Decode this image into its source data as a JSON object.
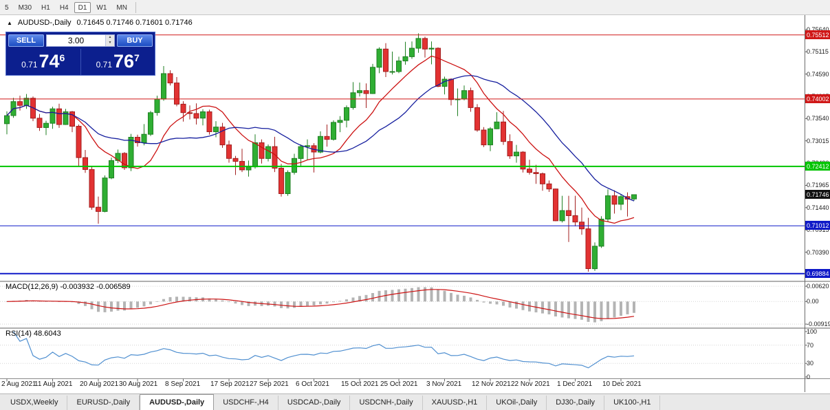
{
  "colors": {
    "bull": "#2fae33",
    "bull_stroke": "#1f7f22",
    "bear": "#e23232",
    "bear_stroke": "#a31f1f",
    "ma_fast": "#cc1111",
    "ma_slow": "#151e9e",
    "macd_hist": "#b4b4b4",
    "macd_signal": "#cc1111",
    "rsi_line": "#4f8fd0",
    "hline_red": "#d01818",
    "hline_green": "#00c400",
    "hline_blue": "#0f19c8",
    "current_tag_bg": "#111111",
    "panel_bg": "#0c1f8e",
    "button_blue": "#2b5fd9"
  },
  "toolbar": {
    "timeframes": [
      "5",
      "M30",
      "H1",
      "H4",
      "D1",
      "W1",
      "MN"
    ],
    "active": "D1"
  },
  "chart_header": {
    "collapse_icon": "▲",
    "title": "AUDUSD-,Daily",
    "ohlc": "0.71645 0.71746 0.71601 0.71746"
  },
  "trade_panel": {
    "sell_label": "SELL",
    "buy_label": "BUY",
    "volume": "3.00",
    "sell_price": {
      "small": "0.71",
      "big": "74",
      "sup": "6"
    },
    "buy_price": {
      "small": "0.71",
      "big": "76",
      "sup": "7"
    }
  },
  "price_axis": {
    "ticks": [
      "0.75640",
      "0.75115",
      "0.74590",
      "0.74065",
      "0.73540",
      "0.73015",
      "0.72490",
      "0.71965",
      "0.71440",
      "0.70915",
      "0.70390",
      "0.69865"
    ],
    "tags": [
      {
        "label": "0.75512",
        "value": 0.75512,
        "bg": "#d01818"
      },
      {
        "label": "0.74002",
        "value": 0.74002,
        "bg": "#d01818"
      },
      {
        "label": "0.72412",
        "value": 0.72412,
        "bg": "#00c400"
      },
      {
        "label": "0.71746",
        "value": 0.71746,
        "bg": "#111111"
      },
      {
        "label": "0.71012",
        "value": 0.71012,
        "bg": "#0f19c8"
      },
      {
        "label": "0.69884",
        "value": 0.69884,
        "bg": "#0f19c8"
      }
    ]
  },
  "panels": {
    "macd": {
      "label": "MACD(12,26,9) -0.003932 -0.006589",
      "axis": [
        {
          "label": "0.00620",
          "value": 0.0062
        },
        {
          "label": "0.00",
          "value": 0
        },
        {
          "label": "-0.00919",
          "value": -0.00919
        }
      ]
    },
    "rsi": {
      "label": "RSI(14) 48.6043",
      "axis": [
        {
          "label": "100",
          "value": 100
        },
        {
          "label": "70",
          "value": 70
        },
        {
          "label": "30",
          "value": 30
        },
        {
          "label": "0",
          "value": 0
        }
      ]
    }
  },
  "tabs": {
    "items": [
      "USDX,Weekly",
      "EURUSD-,Daily",
      "AUDUSD-,Daily",
      "USDCHF-,H4",
      "USDCAD-,Daily",
      "USDCNH-,Daily",
      "XAUUSD-,H1",
      "UKOil-,Daily",
      "DJ30-,Daily",
      "UK100-,H1"
    ],
    "active_index": 2
  },
  "chart_data": {
    "type": "candlestick",
    "title": "AUDUSD-,Daily",
    "ohlc_current": {
      "open": 0.71645,
      "high": 0.71746,
      "low": 0.71601,
      "close": 0.71746
    },
    "y_range": [
      0.6975,
      0.7585
    ],
    "moving_averages": [
      {
        "period": 10,
        "color_key": "ma_fast"
      },
      {
        "period": 20,
        "color_key": "ma_slow"
      }
    ],
    "hlines": [
      {
        "price": 0.75512,
        "color_key": "hline_red",
        "width": 1
      },
      {
        "price": 0.74002,
        "color_key": "hline_red",
        "width": 1
      },
      {
        "price": 0.72412,
        "color_key": "hline_green",
        "width": 2
      },
      {
        "price": 0.71012,
        "color_key": "hline_blue",
        "width": 1
      },
      {
        "price": 0.69884,
        "color_key": "hline_blue",
        "width": 2
      }
    ],
    "date_labels": [
      {
        "index": 0,
        "label": "2 Aug 2021"
      },
      {
        "index": 7,
        "label": "11 Aug 2021"
      },
      {
        "index": 14,
        "label": "20 Aug 2021"
      },
      {
        "index": 20,
        "label": "30 Aug 2021"
      },
      {
        "index": 27,
        "label": "8 Sep 2021"
      },
      {
        "index": 34,
        "label": "17 Sep 2021"
      },
      {
        "index": 40,
        "label": "27 Sep 2021"
      },
      {
        "index": 47,
        "label": "6 Oct 2021"
      },
      {
        "index": 54,
        "label": "15 Oct 2021"
      },
      {
        "index": 60,
        "label": "25 Oct 2021"
      },
      {
        "index": 67,
        "label": "3 Nov 2021"
      },
      {
        "index": 74,
        "label": "12 Nov 2021"
      },
      {
        "index": 80,
        "label": "22 Nov 2021"
      },
      {
        "index": 87,
        "label": "1 Dec 2021"
      },
      {
        "index": 94,
        "label": "10 Dec 2021"
      }
    ],
    "candles_ohlc": [
      [
        0.7342,
        0.7371,
        0.7317,
        0.7361
      ],
      [
        0.7361,
        0.7403,
        0.7356,
        0.7394
      ],
      [
        0.7394,
        0.7408,
        0.7373,
        0.7385
      ],
      [
        0.7385,
        0.7412,
        0.7377,
        0.7402
      ],
      [
        0.7402,
        0.7406,
        0.7348,
        0.7355
      ],
      [
        0.7355,
        0.7365,
        0.7325,
        0.7333
      ],
      [
        0.7333,
        0.7349,
        0.7315,
        0.7343
      ],
      [
        0.7343,
        0.7382,
        0.733,
        0.7377
      ],
      [
        0.7377,
        0.7389,
        0.7332,
        0.734
      ],
      [
        0.734,
        0.7377,
        0.7339,
        0.737
      ],
      [
        0.737,
        0.7372,
        0.7322,
        0.7336
      ],
      [
        0.7336,
        0.734,
        0.7242,
        0.7262
      ],
      [
        0.7262,
        0.728,
        0.7226,
        0.7234
      ],
      [
        0.7234,
        0.7242,
        0.7139,
        0.7145
      ],
      [
        0.7145,
        0.717,
        0.7106,
        0.7135
      ],
      [
        0.7135,
        0.722,
        0.7133,
        0.7214
      ],
      [
        0.7214,
        0.7262,
        0.7211,
        0.7255
      ],
      [
        0.7255,
        0.7281,
        0.7249,
        0.7272
      ],
      [
        0.7272,
        0.7275,
        0.7233,
        0.7238
      ],
      [
        0.7238,
        0.7318,
        0.723,
        0.731
      ],
      [
        0.731,
        0.7316,
        0.7288,
        0.7297
      ],
      [
        0.7297,
        0.7341,
        0.7291,
        0.7317
      ],
      [
        0.7317,
        0.7372,
        0.7313,
        0.7368
      ],
      [
        0.7368,
        0.7408,
        0.7361,
        0.74
      ],
      [
        0.74,
        0.7478,
        0.7396,
        0.746
      ],
      [
        0.746,
        0.7468,
        0.7432,
        0.7438
      ],
      [
        0.7438,
        0.7452,
        0.7383,
        0.7388
      ],
      [
        0.7388,
        0.7395,
        0.7347,
        0.7368
      ],
      [
        0.7368,
        0.7385,
        0.7352,
        0.7366
      ],
      [
        0.7366,
        0.739,
        0.734,
        0.7355
      ],
      [
        0.7355,
        0.7376,
        0.7338,
        0.737
      ],
      [
        0.737,
        0.7375,
        0.7316,
        0.7323
      ],
      [
        0.7323,
        0.7348,
        0.731,
        0.7334
      ],
      [
        0.7334,
        0.7344,
        0.7285,
        0.7292
      ],
      [
        0.7292,
        0.7302,
        0.725,
        0.726
      ],
      [
        0.726,
        0.7266,
        0.7221,
        0.7253
      ],
      [
        0.7253,
        0.7283,
        0.7228,
        0.7233
      ],
      [
        0.7233,
        0.7255,
        0.7217,
        0.724
      ],
      [
        0.724,
        0.7317,
        0.7236,
        0.7297
      ],
      [
        0.7297,
        0.7305,
        0.7248,
        0.726
      ],
      [
        0.726,
        0.7293,
        0.7253,
        0.7288
      ],
      [
        0.7288,
        0.7311,
        0.7228,
        0.7237
      ],
      [
        0.7237,
        0.7247,
        0.717,
        0.7177
      ],
      [
        0.7177,
        0.7232,
        0.7172,
        0.7227
      ],
      [
        0.7227,
        0.7271,
        0.7222,
        0.726
      ],
      [
        0.726,
        0.7293,
        0.724,
        0.7288
      ],
      [
        0.7288,
        0.7305,
        0.7256,
        0.729
      ],
      [
        0.729,
        0.7296,
        0.7227,
        0.7275
      ],
      [
        0.7275,
        0.7324,
        0.7272,
        0.7312
      ],
      [
        0.7312,
        0.734,
        0.7288,
        0.7305
      ],
      [
        0.7305,
        0.735,
        0.7302,
        0.7345
      ],
      [
        0.7345,
        0.736,
        0.7322,
        0.735
      ],
      [
        0.735,
        0.7385,
        0.7333,
        0.738
      ],
      [
        0.738,
        0.744,
        0.7375,
        0.7415
      ],
      [
        0.7415,
        0.7439,
        0.7406,
        0.742
      ],
      [
        0.742,
        0.7437,
        0.7379,
        0.7413
      ],
      [
        0.7413,
        0.7483,
        0.7412,
        0.7475
      ],
      [
        0.7475,
        0.7522,
        0.7461,
        0.7518
      ],
      [
        0.7518,
        0.7532,
        0.7452,
        0.7465
      ],
      [
        0.7465,
        0.7512,
        0.7458,
        0.7465
      ],
      [
        0.7465,
        0.75,
        0.7461,
        0.749
      ],
      [
        0.749,
        0.7535,
        0.7481,
        0.75
      ],
      [
        0.75,
        0.7536,
        0.7495,
        0.752
      ],
      [
        0.752,
        0.7555,
        0.7509,
        0.7543
      ],
      [
        0.7543,
        0.7547,
        0.7498,
        0.7518
      ],
      [
        0.7518,
        0.7536,
        0.7482,
        0.752
      ],
      [
        0.752,
        0.7522,
        0.7428,
        0.743
      ],
      [
        0.743,
        0.7453,
        0.7411,
        0.7447
      ],
      [
        0.7447,
        0.7449,
        0.7385,
        0.7399
      ],
      [
        0.7399,
        0.7425,
        0.736,
        0.74
      ],
      [
        0.74,
        0.7432,
        0.7397,
        0.742
      ],
      [
        0.742,
        0.7427,
        0.737,
        0.738
      ],
      [
        0.738,
        0.7388,
        0.7323,
        0.7327
      ],
      [
        0.7327,
        0.7334,
        0.7287,
        0.7292
      ],
      [
        0.7292,
        0.7334,
        0.7277,
        0.733
      ],
      [
        0.733,
        0.7369,
        0.7329,
        0.7346
      ],
      [
        0.7346,
        0.7372,
        0.7292,
        0.73
      ],
      [
        0.73,
        0.7317,
        0.7259,
        0.7266
      ],
      [
        0.7266,
        0.7292,
        0.725,
        0.7275
      ],
      [
        0.7275,
        0.7277,
        0.7227,
        0.7235
      ],
      [
        0.7235,
        0.7257,
        0.7222,
        0.7227
      ],
      [
        0.7227,
        0.7245,
        0.72,
        0.7224
      ],
      [
        0.7224,
        0.7227,
        0.7184,
        0.72
      ],
      [
        0.72,
        0.7208,
        0.7181,
        0.7188
      ],
      [
        0.7188,
        0.7189,
        0.7112,
        0.7113
      ],
      [
        0.7113,
        0.7172,
        0.7109,
        0.7137
      ],
      [
        0.7137,
        0.7172,
        0.7063,
        0.7125
      ],
      [
        0.7125,
        0.7172,
        0.71,
        0.711
      ],
      [
        0.711,
        0.7144,
        0.708,
        0.7094
      ],
      [
        0.7094,
        0.712,
        0.6993,
        0.7
      ],
      [
        0.7,
        0.7062,
        0.6995,
        0.7053
      ],
      [
        0.7053,
        0.7124,
        0.7049,
        0.7117
      ],
      [
        0.7117,
        0.7187,
        0.711,
        0.7172
      ],
      [
        0.7172,
        0.7185,
        0.713,
        0.7152
      ],
      [
        0.7152,
        0.7176,
        0.7138,
        0.717
      ],
      [
        0.717,
        0.718,
        0.7123,
        0.7164
      ],
      [
        0.71645,
        0.71746,
        0.71601,
        0.71746
      ]
    ],
    "indicators": {
      "macd": {
        "fast": 12,
        "slow": 26,
        "signal": 9,
        "current_macd": -0.003932,
        "current_signal": -0.006589,
        "y_range": [
          -0.01,
          0.0068
        ]
      },
      "rsi": {
        "period": 14,
        "current": 48.6043,
        "levels": [
          70,
          30
        ],
        "y_range": [
          0,
          100
        ]
      }
    }
  }
}
